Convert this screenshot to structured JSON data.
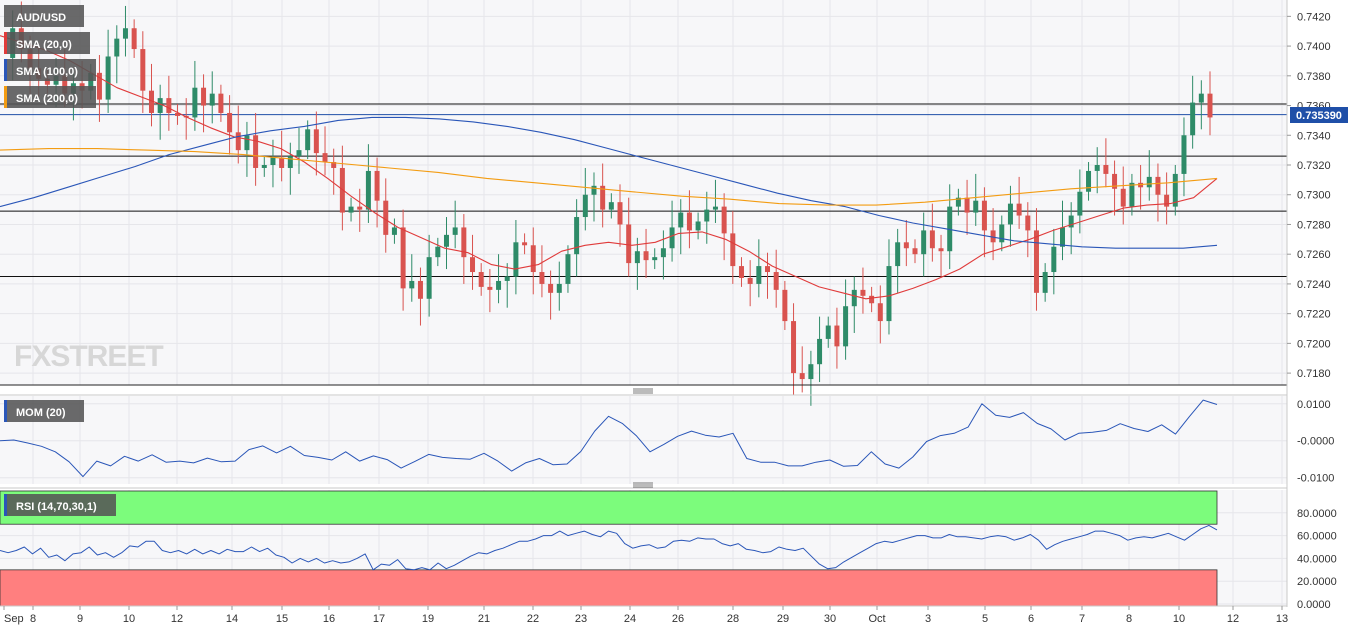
{
  "symbol": "AUD/USD",
  "brand": "FXSTREET",
  "price_badge": "0.735390",
  "indicators": {
    "sma20": {
      "label": "SMA (20,0)",
      "color": "#e03b3b"
    },
    "sma100": {
      "label": "SMA (100,0)",
      "color": "#2a56b8"
    },
    "sma200": {
      "label": "SMA (200,0)",
      "color": "#f39c12"
    },
    "mom": {
      "label": "MOM (20)",
      "color": "#2a56b8"
    },
    "rsi": {
      "label": "RSI (14,70,30,1)",
      "color": "#2a56b8"
    }
  },
  "colors": {
    "bull": "#2e8b68",
    "bear": "#d9534f",
    "overbought": "#7cfc7c",
    "oversold": "#ff7f7f"
  },
  "chart_data": [
    {
      "type": "candlestick",
      "title": "AUD/USD",
      "x_tick_labels": [
        "Sep",
        "8",
        "9",
        "10",
        "12",
        "14",
        "15",
        "16",
        "17",
        "19",
        "21",
        "22",
        "23",
        "24",
        "26",
        "28",
        "29",
        "30",
        "Oct",
        "3",
        "5",
        "6",
        "7",
        "8",
        "10",
        "12",
        "13"
      ],
      "y_tick_labels": [
        "0.7420",
        "0.7400",
        "0.7380",
        "0.7360",
        "0.7340",
        "0.7320",
        "0.7300",
        "0.7280",
        "0.7260",
        "0.7240",
        "0.7220",
        "0.7200",
        "0.7180"
      ],
      "ylim": [
        0.7172,
        0.7431
      ],
      "horizontal_levels": [
        0.7361,
        0.7326,
        0.7289,
        0.7245
      ],
      "current_price": 0.73539,
      "close_path": [
        0.7392,
        0.7412,
        0.7398,
        0.7385,
        0.7378,
        0.7374,
        0.738,
        0.7368,
        0.7375,
        0.737,
        0.7382,
        0.7364,
        0.7393,
        0.7405,
        0.7412,
        0.7398,
        0.737,
        0.7355,
        0.7365,
        0.7355,
        0.7353,
        0.7352,
        0.7372,
        0.736,
        0.7368,
        0.7355,
        0.7342,
        0.733,
        0.734,
        0.7318,
        0.732,
        0.7325,
        0.7318,
        0.7326,
        0.733,
        0.7344,
        0.7328,
        0.7322,
        0.7318,
        0.7288,
        0.7292,
        0.729,
        0.7316,
        0.7296,
        0.7273,
        0.7278,
        0.7237,
        0.7242,
        0.723,
        0.7258,
        0.7265,
        0.7273,
        0.7278,
        0.7258,
        0.7248,
        0.7238,
        0.7236,
        0.7242,
        0.7245,
        0.7268,
        0.7266,
        0.7248,
        0.724,
        0.7234,
        0.724,
        0.726,
        0.7285,
        0.73,
        0.7306,
        0.729,
        0.7295,
        0.728,
        0.7254,
        0.7262,
        0.7256,
        0.7258,
        0.7264,
        0.7278,
        0.7288,
        0.7276,
        0.7282,
        0.729,
        0.7292,
        0.7274,
        0.7252,
        0.7244,
        0.724,
        0.7252,
        0.7248,
        0.7236,
        0.7215,
        0.718,
        0.7176,
        0.7186,
        0.7203,
        0.7212,
        0.7198,
        0.7225,
        0.7236,
        0.7232,
        0.7227,
        0.7215,
        0.7252,
        0.7268,
        0.7264,
        0.726,
        0.7276,
        0.7264,
        0.7262,
        0.7292,
        0.7298,
        0.7288,
        0.7296,
        0.7276,
        0.7268,
        0.728,
        0.7294,
        0.7286,
        0.7276,
        0.7234,
        0.7248,
        0.7265,
        0.7278,
        0.7286,
        0.7302,
        0.7316,
        0.732,
        0.7314,
        0.7304,
        0.7292,
        0.7308,
        0.7305,
        0.7312,
        0.73,
        0.7292,
        0.7314,
        0.734,
        0.7362,
        0.7368,
        0.7352
      ],
      "series": [
        {
          "name": "SMA (20,0)",
          "values": [
            0.7407,
            0.7402,
            0.7397,
            0.739,
            0.7381,
            0.7372,
            0.7366,
            0.736,
            0.7352,
            0.7345,
            0.7339,
            0.7336,
            0.7331,
            0.7322,
            0.7311,
            0.7299,
            0.7288,
            0.7278,
            0.7271,
            0.7264,
            0.7261,
            0.7253,
            0.725,
            0.7253,
            0.7262,
            0.7266,
            0.7268,
            0.7266,
            0.7268,
            0.7274,
            0.7275,
            0.727,
            0.7262,
            0.7252,
            0.7245,
            0.7238,
            0.7234,
            0.723,
            0.7232,
            0.7237,
            0.7243,
            0.725,
            0.726,
            0.7265,
            0.727,
            0.7276,
            0.7281,
            0.7286,
            0.7291,
            0.7293,
            0.7294,
            0.7298,
            0.7311
          ]
        },
        {
          "name": "SMA (100,0)",
          "values": [
            0.7292,
            0.7298,
            0.7305,
            0.7312,
            0.7319,
            0.7327,
            0.7333,
            0.7339,
            0.7343,
            0.7346,
            0.735,
            0.7352,
            0.7352,
            0.7351,
            0.7349,
            0.7346,
            0.7342,
            0.7337,
            0.7331,
            0.7325,
            0.7319,
            0.7313,
            0.7307,
            0.7301,
            0.7296,
            0.7292,
            0.7286,
            0.7281,
            0.7277,
            0.7273,
            0.7269,
            0.7267,
            0.7265,
            0.7264,
            0.7264,
            0.7264,
            0.7266
          ]
        },
        {
          "name": "SMA (200,0)",
          "values": [
            0.733,
            0.7331,
            0.7331,
            0.733,
            0.7329,
            0.7327,
            0.7324,
            0.7321,
            0.7318,
            0.7315,
            0.7311,
            0.7308,
            0.7305,
            0.7302,
            0.7299,
            0.7297,
            0.7294,
            0.7293,
            0.7293,
            0.7295,
            0.7298,
            0.7301,
            0.7304,
            0.7306,
            0.7308,
            0.7311
          ]
        }
      ]
    },
    {
      "type": "line",
      "title": "MOM (20)",
      "y_tick_labels": [
        "0.0100",
        "-0.0000",
        "-0.0100"
      ],
      "ylim": [
        -0.0117,
        0.0121
      ],
      "series": [
        {
          "name": "MOM (20)",
          "values": [
            0.0,
            0.0002,
            -0.0006,
            -0.0015,
            -0.003,
            -0.0057,
            -0.0097,
            -0.0055,
            -0.0068,
            -0.0042,
            -0.0055,
            -0.0038,
            -0.0058,
            -0.0055,
            -0.006,
            -0.0047,
            -0.0057,
            -0.0055,
            -0.0024,
            -0.0014,
            -0.0033,
            -0.0015,
            -0.004,
            -0.0045,
            -0.0052,
            -0.003,
            -0.0055,
            -0.0041,
            -0.0051,
            -0.0074,
            -0.0056,
            -0.0037,
            -0.0045,
            -0.0048,
            -0.005,
            -0.0034,
            -0.0055,
            -0.0082,
            -0.006,
            -0.0048,
            -0.0065,
            -0.0063,
            -0.0029,
            0.0026,
            0.0066,
            0.0047,
            0.0014,
            -0.003,
            -0.001,
            0.0012,
            0.0026,
            0.0015,
            0.001,
            0.002,
            -0.0048,
            -0.0058,
            -0.0058,
            -0.0068,
            -0.0068,
            -0.0058,
            -0.0052,
            -0.0069,
            -0.0067,
            -0.003,
            -0.0063,
            -0.0074,
            -0.0044,
            -0.0002,
            0.0014,
            0.002,
            0.0037,
            0.01,
            0.0069,
            0.0063,
            0.0076,
            0.0047,
            0.0032,
            0.0002,
            0.002,
            0.0023,
            0.0028,
            0.0046,
            0.0033,
            0.0025,
            0.0043,
            0.0018,
            0.0065,
            0.011,
            0.0098
          ]
        }
      ]
    },
    {
      "type": "line",
      "title": "RSI (14,70,30,1)",
      "y_tick_labels": [
        "80.0000",
        "60.0000",
        "40.0000",
        "20.0000",
        "0.0000"
      ],
      "ylim": [
        -1.7,
        100
      ],
      "overbought": 70,
      "oversold": 30,
      "series": [
        {
          "name": "RSI (14,70,30,1)",
          "values": [
            47,
            45,
            47,
            50,
            44,
            49,
            41,
            43,
            38,
            44,
            45,
            50,
            43,
            45,
            41,
            45,
            51,
            50,
            55,
            55,
            47,
            45,
            47,
            44,
            48,
            44,
            47,
            44,
            48,
            46,
            46,
            50,
            46,
            49,
            43,
            41,
            36,
            40,
            37,
            40,
            36,
            38,
            36,
            37,
            40,
            44,
            30,
            35,
            34,
            39,
            31,
            30,
            32,
            30,
            36,
            31,
            34,
            38,
            42,
            45,
            44,
            47,
            49,
            52,
            55,
            55,
            57,
            60,
            60,
            64,
            60,
            62,
            64,
            61,
            59,
            64,
            62,
            53,
            49,
            51,
            52,
            49,
            50,
            55,
            56,
            55,
            58,
            57,
            57,
            53,
            51,
            53,
            48,
            47,
            45,
            46,
            50,
            48,
            47,
            49,
            42,
            35,
            31,
            32,
            37,
            41,
            45,
            49,
            53,
            55,
            54,
            56,
            58,
            60,
            60,
            58,
            58,
            61,
            59,
            59,
            58,
            57,
            59,
            60,
            59,
            56,
            58,
            61,
            56,
            48,
            52,
            55,
            57,
            59,
            61,
            64,
            64,
            62,
            60,
            56,
            58,
            59,
            58,
            60,
            62,
            59,
            56,
            61,
            66,
            69,
            65
          ]
        }
      ]
    }
  ]
}
